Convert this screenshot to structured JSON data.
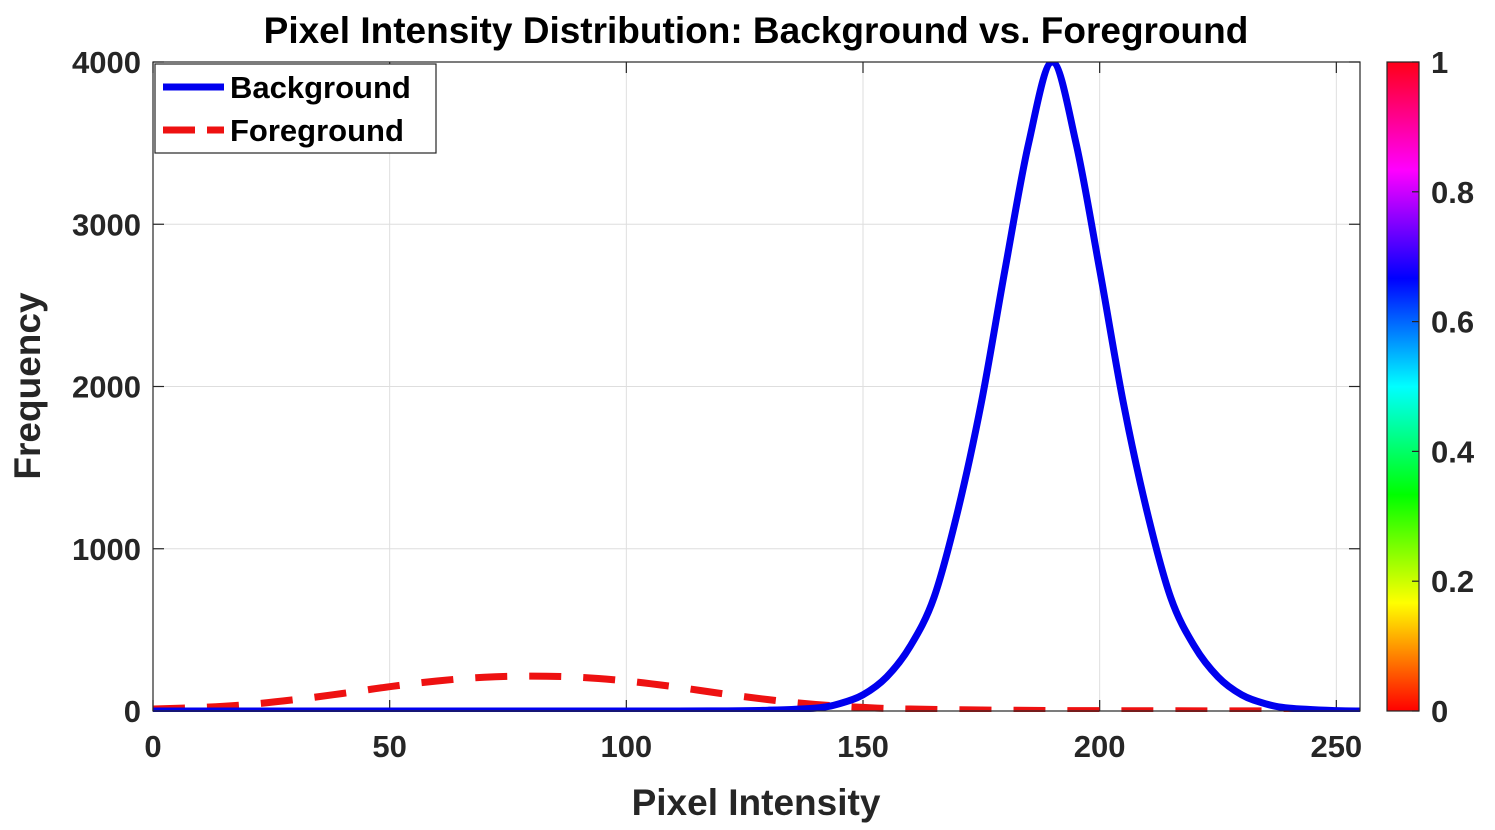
{
  "chart_data": {
    "type": "line",
    "title": "Pixel Intensity Distribution: Background vs. Foreground",
    "xlabel": "Pixel Intensity",
    "ylabel": "Frequency",
    "xlim": [
      0,
      255
    ],
    "ylim": [
      0,
      4000
    ],
    "xticks": [
      0,
      50,
      100,
      150,
      200,
      250
    ],
    "yticks": [
      0,
      1000,
      2000,
      3000,
      4000
    ],
    "grid": true,
    "legend_position": "top-left",
    "series": [
      {
        "name": "Background",
        "color": "#0000ee",
        "style": "solid",
        "x": [
          0,
          100,
          120,
          130,
          140,
          145,
          150,
          155,
          160,
          165,
          170,
          175,
          180,
          185,
          190,
          195,
          200,
          205,
          210,
          215,
          220,
          225,
          230,
          235,
          240,
          250,
          255
        ],
        "y": [
          0,
          0,
          1,
          5,
          18,
          45,
          100,
          210,
          400,
          700,
          1230,
          1900,
          2720,
          3500,
          4000,
          3500,
          2720,
          1900,
          1230,
          700,
          400,
          210,
          100,
          45,
          18,
          2,
          0
        ]
      },
      {
        "name": "Foreground",
        "color": "#ee1111",
        "style": "dashed",
        "x": [
          0,
          10,
          20,
          30,
          40,
          50,
          60,
          70,
          80,
          90,
          100,
          110,
          120,
          130,
          140,
          150,
          160,
          180,
          200,
          255
        ],
        "y": [
          12,
          22,
          40,
          70,
          108,
          150,
          185,
          208,
          215,
          208,
          185,
          150,
          108,
          70,
          40,
          22,
          12,
          5,
          2,
          0
        ]
      }
    ],
    "colorbar": {
      "colormap": "hsv",
      "range": [
        0,
        1
      ],
      "ticks": [
        "0",
        "0.2",
        "0.4",
        "0.6",
        "0.8",
        "1"
      ],
      "position": "right"
    }
  }
}
